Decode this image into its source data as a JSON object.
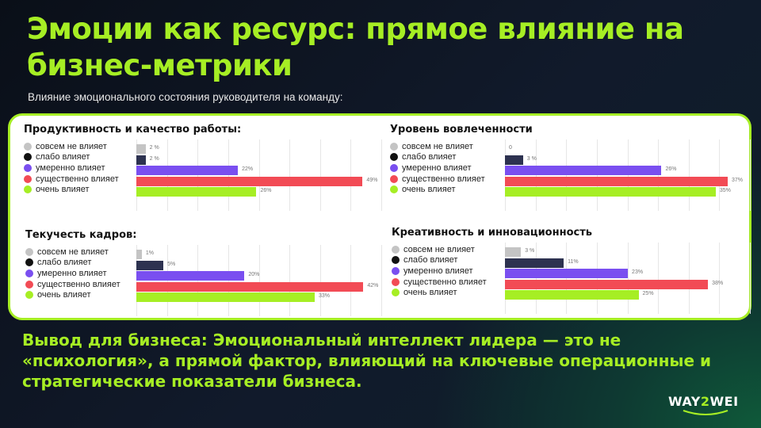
{
  "slide": {
    "title": "Эмоции как ресурс: прямое влияние на бизнес-метрики",
    "subtitle": "Влияние эмоционального состояния руководителя на команду:",
    "conclusion": "Вывод для бизнеса: Эмоциональный интеллект лидера — это не «психология», а прямой фактор, влияющий на ключевые операционные и стратегические показатели бизнеса.",
    "logo": {
      "part1": "WAY",
      "part2": "2",
      "part3": "WEI"
    }
  },
  "legend": [
    {
      "label": "совсем не влияет",
      "color": "#c4c4c4"
    },
    {
      "label": "слабо влияет",
      "color": "#111111"
    },
    {
      "label": "умеренно влияет",
      "color": "#7a4ff0"
    },
    {
      "label": "существенно влияет",
      "color": "#f24b55"
    },
    {
      "label": "очень влияет",
      "color": "#a6ee24"
    }
  ],
  "bar_colors": [
    "#c4c4c4",
    "#2d3250",
    "#7a4ff0",
    "#f24b55",
    "#a6ee24"
  ],
  "chart_data": [
    {
      "type": "bar",
      "orientation": "horizontal",
      "title": "Продуктивность и качество работы:",
      "categories": [
        "совсем не влияет",
        "слабо влияет",
        "умеренно влияет",
        "существенно влияет",
        "очень влияет"
      ],
      "values": [
        2,
        2,
        22,
        49,
        26
      ],
      "labels": [
        "2 %",
        "2 %",
        "22%",
        "49%",
        "26%"
      ],
      "unit": "%",
      "xlim": [
        0,
        55
      ],
      "grid": true,
      "legend_position": "left"
    },
    {
      "type": "bar",
      "orientation": "horizontal",
      "title": "Уровень вовлеченности",
      "categories": [
        "совсем не влияет",
        "слабо влияет",
        "умеренно влияет",
        "существенно влияет",
        "очень влияет"
      ],
      "values": [
        0,
        3,
        26,
        37,
        35
      ],
      "labels": [
        "0",
        "3 %",
        "26%",
        "37%",
        "35%"
      ],
      "unit": "%",
      "xlim": [
        0,
        40
      ],
      "grid": true,
      "legend_position": "left"
    },
    {
      "type": "bar",
      "orientation": "horizontal",
      "title": "Текучесть кадров:",
      "categories": [
        "совсем не влияет",
        "слабо влияет",
        "умеренно влияет",
        "существенно влияет",
        "очень влияет"
      ],
      "values": [
        1,
        5,
        20,
        42,
        33
      ],
      "labels": [
        "1%",
        "5%",
        "20%",
        "42%",
        "33%"
      ],
      "unit": "%",
      "xlim": [
        0,
        45
      ],
      "grid": true,
      "legend_position": "left"
    },
    {
      "type": "bar",
      "orientation": "horizontal",
      "title": "Креативность и инновационность",
      "categories": [
        "совсем не влияет",
        "слабо влияет",
        "умеренно влияет",
        "существенно влияет",
        "очень влияет"
      ],
      "values": [
        3,
        11,
        23,
        38,
        25
      ],
      "labels": [
        "3 %",
        "11%",
        "23%",
        "38%",
        "25%"
      ],
      "unit": "%",
      "xlim": [
        0,
        45
      ],
      "grid": true,
      "legend_position": "left"
    }
  ]
}
